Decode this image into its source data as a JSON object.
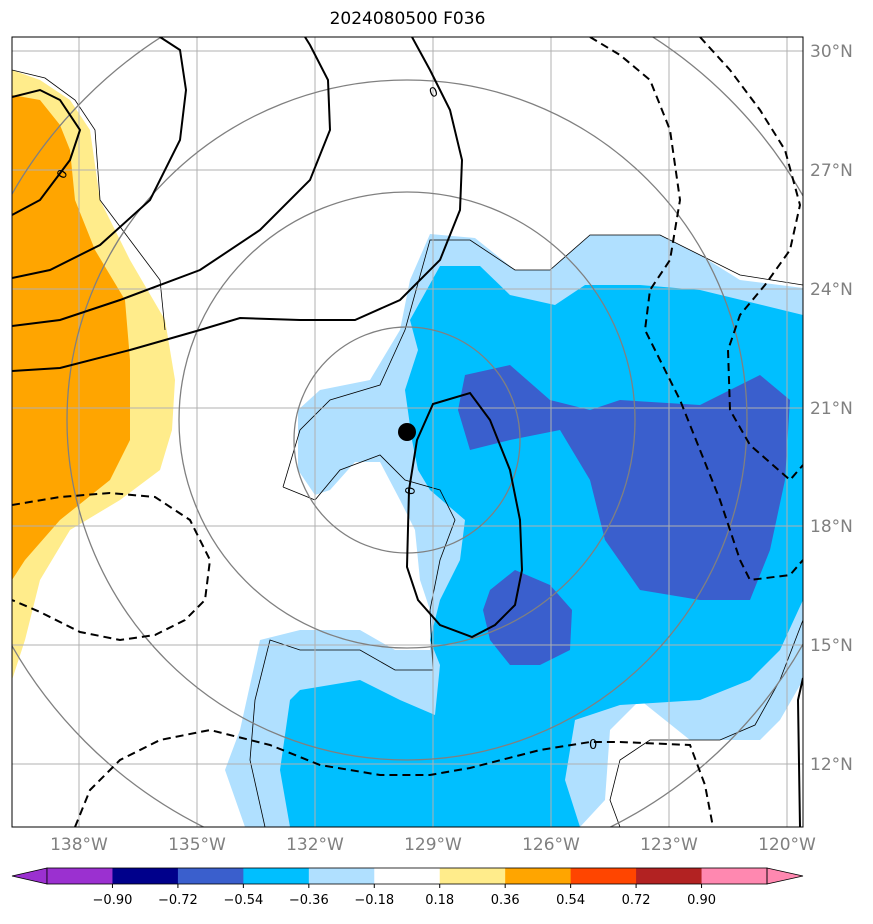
{
  "title": "2024080500 F036",
  "map": {
    "lat_labels": [
      "30°N",
      "27°N",
      "24°N",
      "21°N",
      "18°N",
      "15°N",
      "12°N"
    ],
    "lon_labels": [
      "138°W",
      "135°W",
      "132°W",
      "129°W",
      "126°W",
      "123°W",
      "120°W"
    ],
    "contour_labels": [
      "0",
      "0",
      "0",
      "0"
    ],
    "center_marker": "storm-center-dot"
  },
  "colorbar": {
    "ticks": [
      "−0.90",
      "−0.72",
      "−0.54",
      "−0.36",
      "−0.18",
      "0.18",
      "0.36",
      "0.54",
      "0.72",
      "0.90"
    ],
    "colors": [
      "#9b30d0",
      "#00008b",
      "#3a5fcd",
      "#00bfff",
      "#b0e0ff",
      "#ffffff",
      "#ffec8b",
      "#ffa500",
      "#ff4500",
      "#b22222",
      "#ff88b0"
    ]
  }
}
